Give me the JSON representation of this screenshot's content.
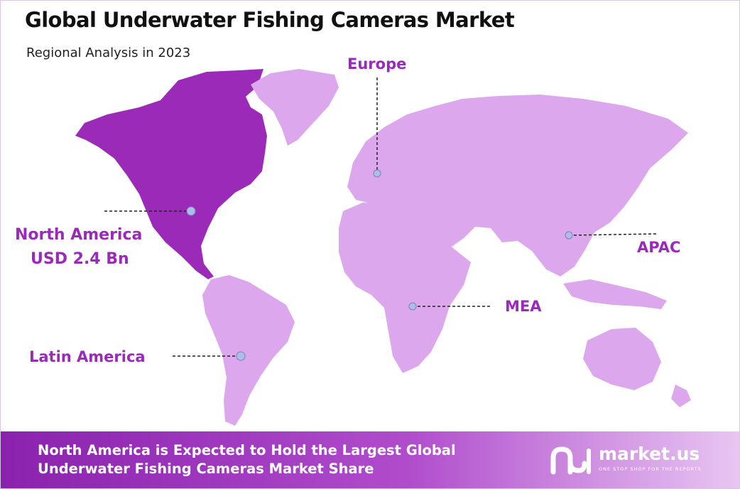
{
  "header": {
    "title": "Global Underwater Fishing Cameras Market",
    "subtitle": "Regional Analysis in 2023"
  },
  "colors": {
    "highlight_region": "#9c2ab8",
    "other_regions": "#dca7ec",
    "label_text": "#9a2ab9",
    "marker_fill": "#a9bfe8"
  },
  "regions": {
    "north_america": {
      "name": "North America",
      "value": "USD 2.4 Bn",
      "highlighted": true
    },
    "europe": {
      "name": "Europe"
    },
    "apac": {
      "name": "APAC"
    },
    "mea": {
      "name": "MEA"
    },
    "latin_america": {
      "name": "Latin America"
    }
  },
  "footer": {
    "line1": "North America is Expected to Hold the Largest Global",
    "line2": "Underwater Fishing Cameras Market Share"
  },
  "brand": {
    "name": "market.us",
    "tagline": "ONE STOP SHOP FOR THE REPORTS",
    "icon": "market-us-logo-icon"
  }
}
